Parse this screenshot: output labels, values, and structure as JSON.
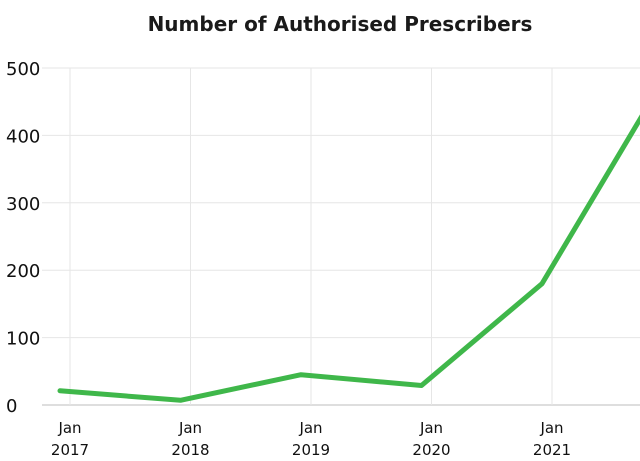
{
  "chart_data": {
    "type": "line",
    "title": "Number of Authorised Prescribers",
    "xlabel": "",
    "ylabel": "",
    "ylim": [
      0,
      500
    ],
    "y_ticks": [
      0,
      100,
      200,
      300,
      400,
      500
    ],
    "x_ticks": [
      {
        "date": "2017-01",
        "label_line1": "Jan",
        "label_line2": "2017"
      },
      {
        "date": "2018-01",
        "label_line1": "Jan",
        "label_line2": "2018"
      },
      {
        "date": "2019-01",
        "label_line1": "Jan",
        "label_line2": "2019"
      },
      {
        "date": "2020-01",
        "label_line1": "Jan",
        "label_line2": "2020"
      },
      {
        "date": "2021-01",
        "label_line1": "Jan",
        "label_line2": "2021"
      }
    ],
    "grid": true,
    "series": [
      {
        "color": "#3fb74a",
        "points": [
          {
            "x": "2016-12",
            "y": 21
          },
          {
            "x": "2017-12",
            "y": 7
          },
          {
            "x": "2018-12",
            "y": 45
          },
          {
            "x": "2019-12",
            "y": 29
          },
          {
            "x": "2020-12",
            "y": 180
          },
          {
            "x": "2021-10",
            "y": 430
          }
        ]
      }
    ]
  }
}
